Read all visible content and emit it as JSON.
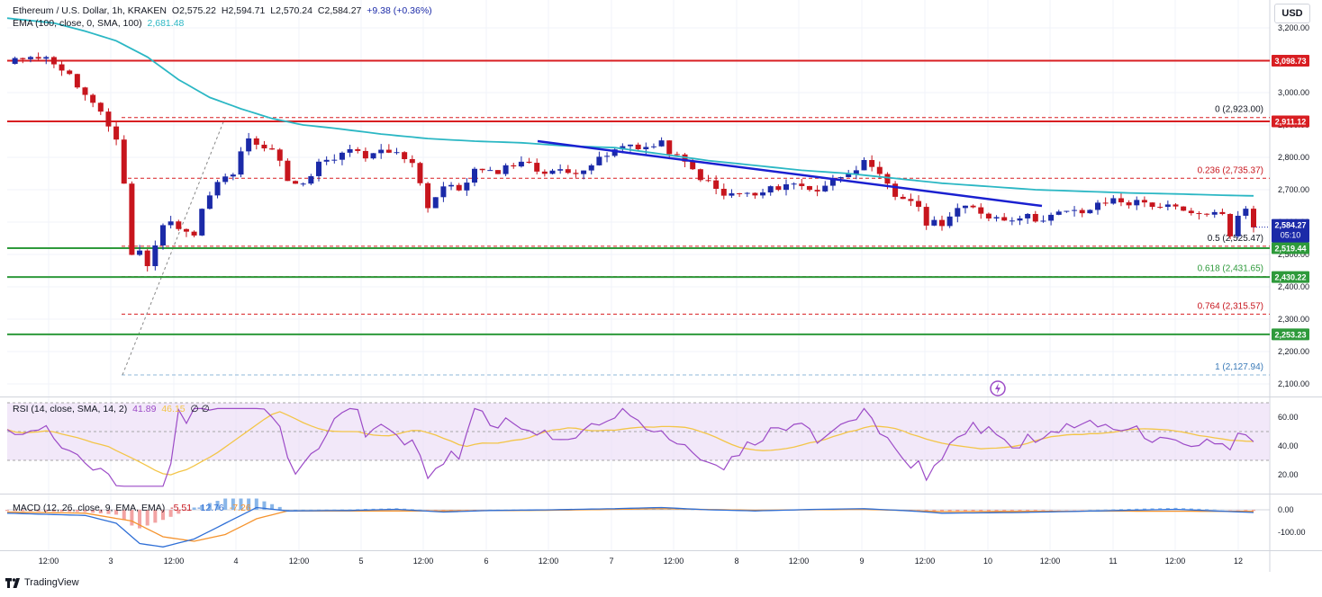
{
  "legend": {
    "symbol": "Ethereum / U.S. Dollar, 1h, KRAKEN",
    "ohlc_o_label": "O",
    "ohlc_o": "2,575.22",
    "ohlc_h_label": "H",
    "ohlc_h": "2,594.71",
    "ohlc_l_label": "L",
    "ohlc_l": "2,570.24",
    "ohlc_c_label": "C",
    "ohlc_c": "2,584.27",
    "change": "+9.38 (+0.36%)",
    "ema_label": "EMA (100, close, 0, SMA, 100)",
    "ema_value": "2,681.48",
    "rsi_label": "RSI (14, close, SMA, 14, 2)",
    "rsi_value": "41.89",
    "rsi_sma": "46.15",
    "rsi_extra": "∅ ∅",
    "macd_label": "MACD (12, 26, close, 9, EMA, EMA)",
    "macd_hist": "-5.51",
    "macd_line": "-12.76",
    "macd_signal": "-7.26"
  },
  "currency_button": "USD",
  "brand": "TradingView",
  "colors": {
    "up": "#1b2aa8",
    "down": "#c7151d",
    "ema": "#2bb7c4",
    "trend": "#1a20d0",
    "resistance": "#d81e22",
    "support": "#2e9a3b",
    "fib": "#d81e22",
    "rsi_band": "#ead9f5",
    "rsi_line": "#9c4bc7",
    "rsi_sma": "#f3c548",
    "macd_line": "#2f6fd6",
    "macd_signal": "#f5932d"
  },
  "chart_data": [
    {
      "type": "candlestick",
      "title": "Ethereum / U.S. Dollar, 1h, KRAKEN",
      "yaxis_ticks": [
        "3,200.00",
        "3,100.00",
        "3,000.00",
        "2,900.00",
        "2,800.00",
        "2,700.00",
        "2,600.00",
        "2,500.00",
        "2,400.00",
        "2,300.00",
        "2,200.00",
        "2,100.00"
      ],
      "ylim": [
        2080,
        3260
      ],
      "xaxis_ticks": [
        "12:00",
        "3",
        "12:00",
        "4",
        "12:00",
        "5",
        "12:00",
        "6",
        "12:00",
        "7",
        "12:00",
        "8",
        "12:00",
        "9",
        "12:00",
        "10",
        "12:00",
        "11",
        "12:00",
        "12"
      ],
      "path": [
        [
          0,
          3085
        ],
        [
          3,
          3120
        ],
        [
          6,
          3095
        ],
        [
          8,
          3050
        ],
        [
          10,
          2990
        ],
        [
          12,
          2930
        ],
        [
          14,
          2860
        ],
        [
          15,
          2720
        ],
        [
          16,
          2500
        ],
        [
          17,
          2510
        ],
        [
          18,
          2470
        ],
        [
          19,
          2520
        ],
        [
          20,
          2600
        ],
        [
          22,
          2590
        ],
        [
          24,
          2560
        ],
        [
          25,
          2640
        ],
        [
          27,
          2720
        ],
        [
          29,
          2750
        ],
        [
          31,
          2870
        ],
        [
          33,
          2830
        ],
        [
          35,
          2800
        ],
        [
          36,
          2720
        ],
        [
          38,
          2710
        ],
        [
          40,
          2780
        ],
        [
          42,
          2790
        ],
        [
          44,
          2830
        ],
        [
          46,
          2790
        ],
        [
          48,
          2820
        ],
        [
          50,
          2810
        ],
        [
          52,
          2790
        ],
        [
          54,
          2650
        ],
        [
          56,
          2710
        ],
        [
          58,
          2700
        ],
        [
          60,
          2760
        ],
        [
          62,
          2750
        ],
        [
          64,
          2770
        ],
        [
          66,
          2790
        ],
        [
          68,
          2760
        ],
        [
          70,
          2760
        ],
        [
          72,
          2750
        ],
        [
          74,
          2770
        ],
        [
          76,
          2790
        ],
        [
          78,
          2820
        ],
        [
          80,
          2840
        ],
        [
          82,
          2830
        ],
        [
          84,
          2840
        ],
        [
          86,
          2800
        ],
        [
          88,
          2760
        ],
        [
          90,
          2720
        ],
        [
          92,
          2680
        ],
        [
          94,
          2690
        ],
        [
          96,
          2680
        ],
        [
          98,
          2700
        ],
        [
          100,
          2720
        ],
        [
          102,
          2710
        ],
        [
          104,
          2700
        ],
        [
          106,
          2730
        ],
        [
          108,
          2760
        ],
        [
          110,
          2780
        ],
        [
          112,
          2740
        ],
        [
          114,
          2680
        ],
        [
          116,
          2670
        ],
        [
          118,
          2600
        ],
        [
          120,
          2600
        ],
        [
          122,
          2640
        ],
        [
          124,
          2640
        ],
        [
          126,
          2620
        ],
        [
          128,
          2610
        ],
        [
          130,
          2620
        ],
        [
          132,
          2610
        ],
        [
          134,
          2620
        ],
        [
          136,
          2630
        ],
        [
          138,
          2630
        ],
        [
          140,
          2650
        ],
        [
          142,
          2670
        ],
        [
          144,
          2660
        ],
        [
          146,
          2660
        ],
        [
          148,
          2650
        ],
        [
          150,
          2640
        ],
        [
          152,
          2620
        ],
        [
          154,
          2630
        ],
        [
          156,
          2620
        ],
        [
          157,
          2560
        ],
        [
          158,
          2630
        ],
        [
          159,
          2635
        ],
        [
          160,
          2584
        ]
      ],
      "ema100": [
        [
          0,
          3230
        ],
        [
          6,
          3215
        ],
        [
          10,
          3190
        ],
        [
          14,
          3160
        ],
        [
          18,
          3110
        ],
        [
          22,
          3040
        ],
        [
          26,
          2985
        ],
        [
          30,
          2950
        ],
        [
          34,
          2920
        ],
        [
          38,
          2900
        ],
        [
          42,
          2890
        ],
        [
          48,
          2872
        ],
        [
          54,
          2858
        ],
        [
          60,
          2850
        ],
        [
          66,
          2845
        ],
        [
          72,
          2835
        ],
        [
          78,
          2830
        ],
        [
          84,
          2810
        ],
        [
          90,
          2790
        ],
        [
          96,
          2775
        ],
        [
          102,
          2760
        ],
        [
          108,
          2750
        ],
        [
          114,
          2735
        ],
        [
          120,
          2720
        ],
        [
          126,
          2710
        ],
        [
          132,
          2700
        ],
        [
          138,
          2695
        ],
        [
          144,
          2690
        ],
        [
          150,
          2687
        ],
        [
          156,
          2683
        ],
        [
          160,
          2681
        ]
      ],
      "lines": [
        {
          "kind": "resistance",
          "value": 3098.73,
          "label": "3,098.73"
        },
        {
          "kind": "resistance",
          "value": 2911.12,
          "label": "2,911.12"
        },
        {
          "kind": "support",
          "value": 2519.44,
          "label": "2,519.44"
        },
        {
          "kind": "support",
          "value": 2430.22,
          "label": "2,430.22"
        },
        {
          "kind": "support",
          "value": 2253.23,
          "label": "2,253.23"
        }
      ],
      "fib": [
        {
          "level": "0",
          "value": 2923.0,
          "label": "0 (2,923.00)"
        },
        {
          "level": "0.236",
          "value": 2735.37,
          "label": "0.236 (2,735.37)"
        },
        {
          "level": "0.5",
          "value": 2525.47,
          "label": "0.5 (2,525.47)"
        },
        {
          "level": "0.618",
          "value": 2431.65,
          "label": "0.618 (2,431.65)"
        },
        {
          "level": "0.764",
          "value": 2315.57,
          "label": "0.764 (2,315.57)"
        },
        {
          "level": "1",
          "value": 2127.94,
          "label": "1 (2,127.94)"
        }
      ],
      "trendline": [
        [
          85,
          2850
        ],
        [
          165,
          2650
        ]
      ],
      "last_price_label": "2,584.27",
      "countdown_label": "05:10"
    },
    {
      "type": "line",
      "title": "RSI (14, close, SMA, 14, 2)",
      "yaxis_ticks": [
        "60.00",
        "40.00",
        "20.00"
      ],
      "ylim": [
        5,
        70
      ],
      "band": [
        30,
        70
      ],
      "midline": 50
    },
    {
      "type": "line",
      "title": "MACD (12, 26, close, 9, EMA, EMA)",
      "yaxis_ticks": [
        "0.00",
        "-100.00"
      ],
      "ylim": [
        -175,
        65
      ]
    }
  ]
}
